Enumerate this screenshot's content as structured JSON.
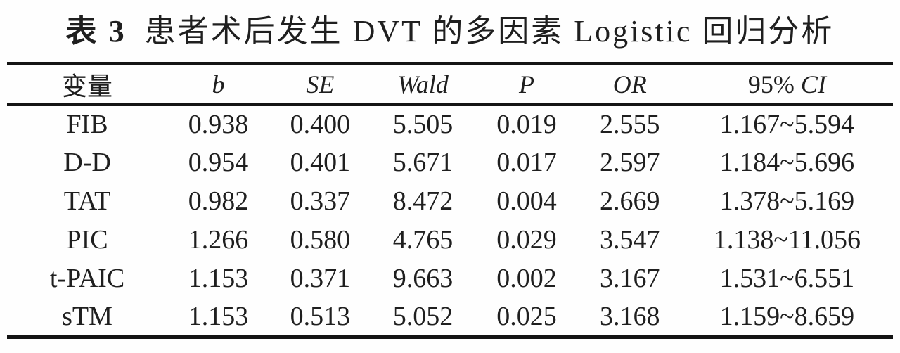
{
  "title": {
    "prefix": "表 3",
    "text": "患者术后发生 DVT 的多因素 Logistic 回归分析"
  },
  "colors": {
    "text": "#1f1f1f",
    "rule": "#141414",
    "background": "#fefefe"
  },
  "table": {
    "header": {
      "variable": "变量",
      "b": "b",
      "se": "SE",
      "wald": "Wald",
      "p": "P",
      "or": "OR",
      "ci_num": "95%",
      "ci_label": "CI"
    },
    "rows": [
      {
        "variable": "FIB",
        "b": "0.938",
        "se": "0.400",
        "wald": "5.505",
        "p": "0.019",
        "or": "2.555",
        "ci": "1.167~5.594"
      },
      {
        "variable": "D-D",
        "b": "0.954",
        "se": "0.401",
        "wald": "5.671",
        "p": "0.017",
        "or": "2.597",
        "ci": "1.184~5.696"
      },
      {
        "variable": "TAT",
        "b": "0.982",
        "se": "0.337",
        "wald": "8.472",
        "p": "0.004",
        "or": "2.669",
        "ci": "1.378~5.169"
      },
      {
        "variable": "PIC",
        "b": "1.266",
        "se": "0.580",
        "wald": "4.765",
        "p": "0.029",
        "or": "3.547",
        "ci": "1.138~11.056"
      },
      {
        "variable": "t-PAIC",
        "b": "1.153",
        "se": "0.371",
        "wald": "9.663",
        "p": "0.002",
        "or": "3.167",
        "ci": "1.531~6.551"
      },
      {
        "variable": "sTM",
        "b": "1.153",
        "se": "0.513",
        "wald": "5.052",
        "p": "0.025",
        "or": "3.168",
        "ci": "1.159~8.659"
      }
    ]
  }
}
